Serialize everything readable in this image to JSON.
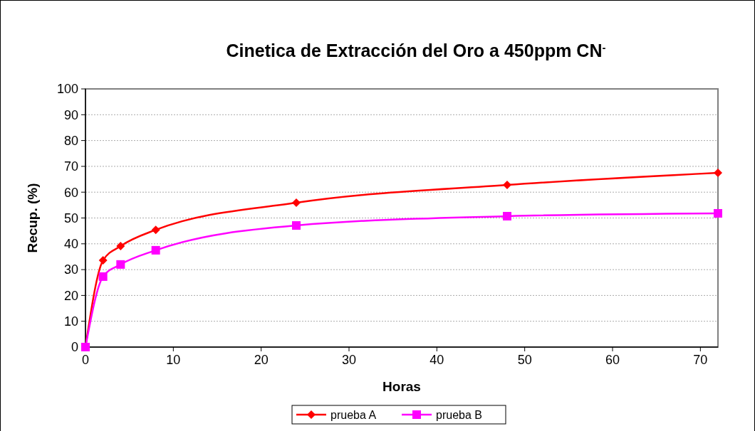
{
  "chart_data": {
    "type": "line",
    "title": "Cinetica de Extracción del Oro a 450ppm CN$^{-}$",
    "xlabel": "Horas",
    "ylabel": "Recup. (%)",
    "xlim": [
      0,
      72
    ],
    "xticks": [
      0,
      10,
      20,
      30,
      40,
      50,
      60,
      70
    ],
    "ylim": [
      0,
      100
    ],
    "yticks": [
      0,
      10,
      20,
      30,
      40,
      50,
      60,
      70,
      80,
      90,
      100
    ],
    "grid": "y",
    "legend": "bottom",
    "x": [
      0,
      2,
      4,
      8,
      24,
      48,
      72
    ],
    "series": [
      {
        "name": "prueba A",
        "color": "#ff0000",
        "marker": "diamond",
        "values": [
          0,
          33.6,
          39.1,
          45.4,
          55.9,
          62.8,
          67.5
        ]
      },
      {
        "name": "prueba B",
        "color": "#ff00ff",
        "marker": "square",
        "values": [
          0,
          27.3,
          32,
          37.5,
          47.1,
          50.7,
          51.8
        ]
      }
    ]
  }
}
